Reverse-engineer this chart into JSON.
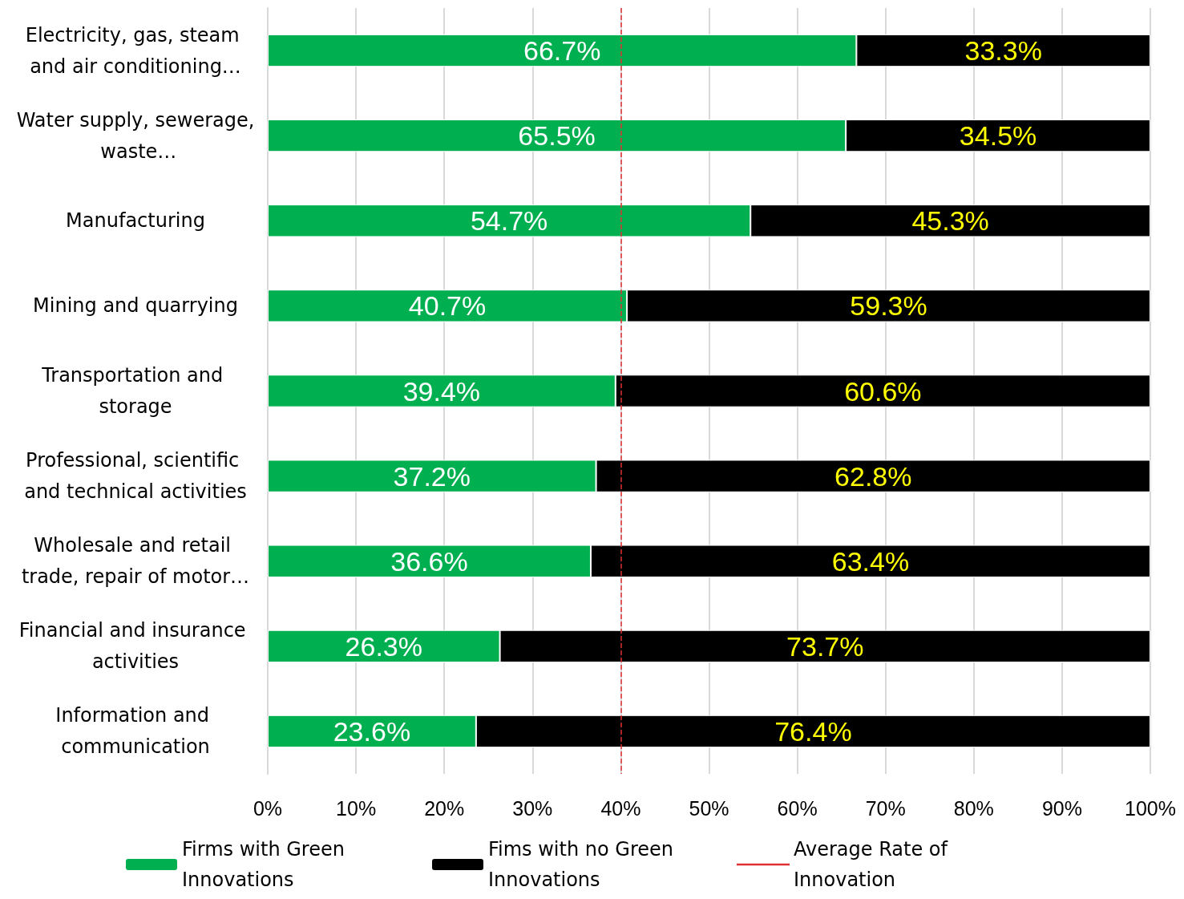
{
  "chart_data": {
    "type": "bar",
    "orientation": "horizontal",
    "stacked": true,
    "categories": [
      "Electricity, gas, steam and air conditioning…",
      "Water supply, sewerage, waste…",
      "Manufacturing",
      "Mining and quarrying",
      "Transportation and storage",
      "Professional, scientific and technical activities",
      "Wholesale and retail trade, repair of motor…",
      "Financial and insurance activities",
      "Information and communication"
    ],
    "series": [
      {
        "name": "Firms with Green Innovations",
        "color": "#00b050",
        "values": [
          66.7,
          65.5,
          54.7,
          40.7,
          39.4,
          37.2,
          36.6,
          26.3,
          23.6
        ],
        "value_labels": [
          "66.7%",
          "65.5%",
          "54.7%",
          "40.7%",
          "39.4%",
          "37.2%",
          "36.6%",
          "26.3%",
          "23.6%"
        ]
      },
      {
        "name": "Fims with no Green Innovations",
        "color": "#000000",
        "values": [
          33.3,
          34.5,
          45.3,
          59.3,
          60.6,
          62.8,
          63.4,
          73.7,
          76.4
        ],
        "value_labels": [
          "33.3%",
          "34.5%",
          "45.3%",
          "59.3%",
          "60.6%",
          "62.8%",
          "63.4%",
          "73.7%",
          "76.4%"
        ]
      }
    ],
    "xlim": [
      0,
      100
    ],
    "xticks": [
      {
        "value": 0,
        "label": "0%"
      },
      {
        "value": 10,
        "label": "10%"
      },
      {
        "value": 20,
        "label": "20%"
      },
      {
        "value": 30,
        "label": "30%"
      },
      {
        "value": 40,
        "label": "40%"
      },
      {
        "value": 50,
        "label": "50%"
      },
      {
        "value": 60,
        "label": "60%"
      },
      {
        "value": 70,
        "label": "70%"
      },
      {
        "value": 80,
        "label": "80%"
      },
      {
        "value": 90,
        "label": "90%"
      },
      {
        "value": 100,
        "label": "100%"
      }
    ],
    "ref_lines": [
      {
        "axis": "x",
        "value": 40,
        "label": "Average Rate of Innovation",
        "color": "#e03030",
        "line_style": "dashed"
      }
    ],
    "grid": "x",
    "legend": "bottom"
  }
}
